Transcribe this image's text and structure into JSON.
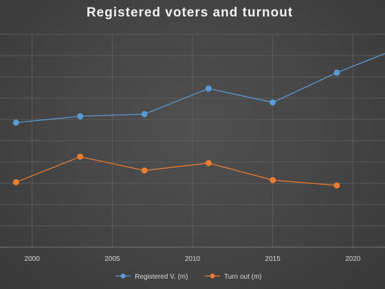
{
  "chart_data": {
    "type": "line",
    "title": "Registered voters and turnout",
    "xlabel": "",
    "ylabel": "",
    "xlim": [
      1998,
      2022
    ],
    "ylim": [
      0,
      10
    ],
    "x_ticks": [
      2000,
      2005,
      2010,
      2015,
      2020
    ],
    "grid": true,
    "legend_position": "bottom",
    "series": [
      {
        "name": "Registered V. (m)",
        "color": "#5b9bd5",
        "x": [
          1999,
          2003,
          2007,
          2011,
          2015,
          2019,
          2022
        ],
        "y": [
          5.85,
          6.15,
          6.25,
          7.45,
          6.8,
          8.2,
          9.1
        ]
      },
      {
        "name": "Turn out (m)",
        "color": "#ed7d31",
        "x": [
          1999,
          2003,
          2007,
          2011,
          2015,
          2019
        ],
        "y": [
          3.05,
          4.25,
          3.6,
          3.95,
          3.15,
          2.9
        ]
      }
    ]
  }
}
